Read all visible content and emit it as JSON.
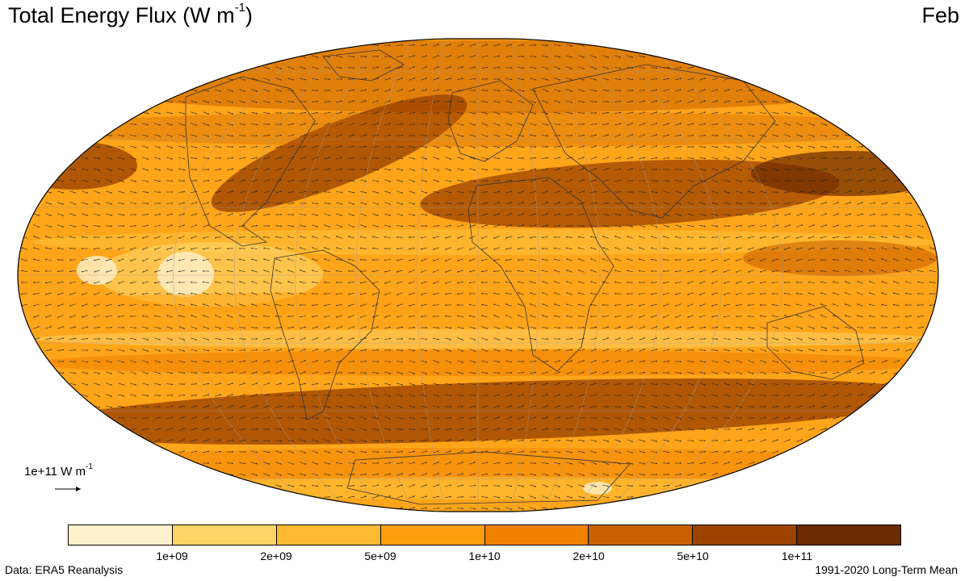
{
  "title": {
    "main": "Total Energy Flux (W m",
    "exp": "-1",
    "close": ")"
  },
  "month": "Feb",
  "reference_vector": {
    "label": "1e+11 W m",
    "exp": "-1"
  },
  "colorbar": {
    "colors": [
      "#fff1cc",
      "#ffd466",
      "#ffba33",
      "#ff9f0f",
      "#f08200",
      "#c96100",
      "#9c4300",
      "#6b2a00"
    ],
    "ticks": [
      "1e+09",
      "2e+09",
      "5e+09",
      "1e+10",
      "2e+10",
      "5e+10",
      "1e+11"
    ]
  },
  "footer": {
    "left": "Data: ERA5 Reanalysis",
    "right": "1991-2020 Long-Term Mean"
  }
}
